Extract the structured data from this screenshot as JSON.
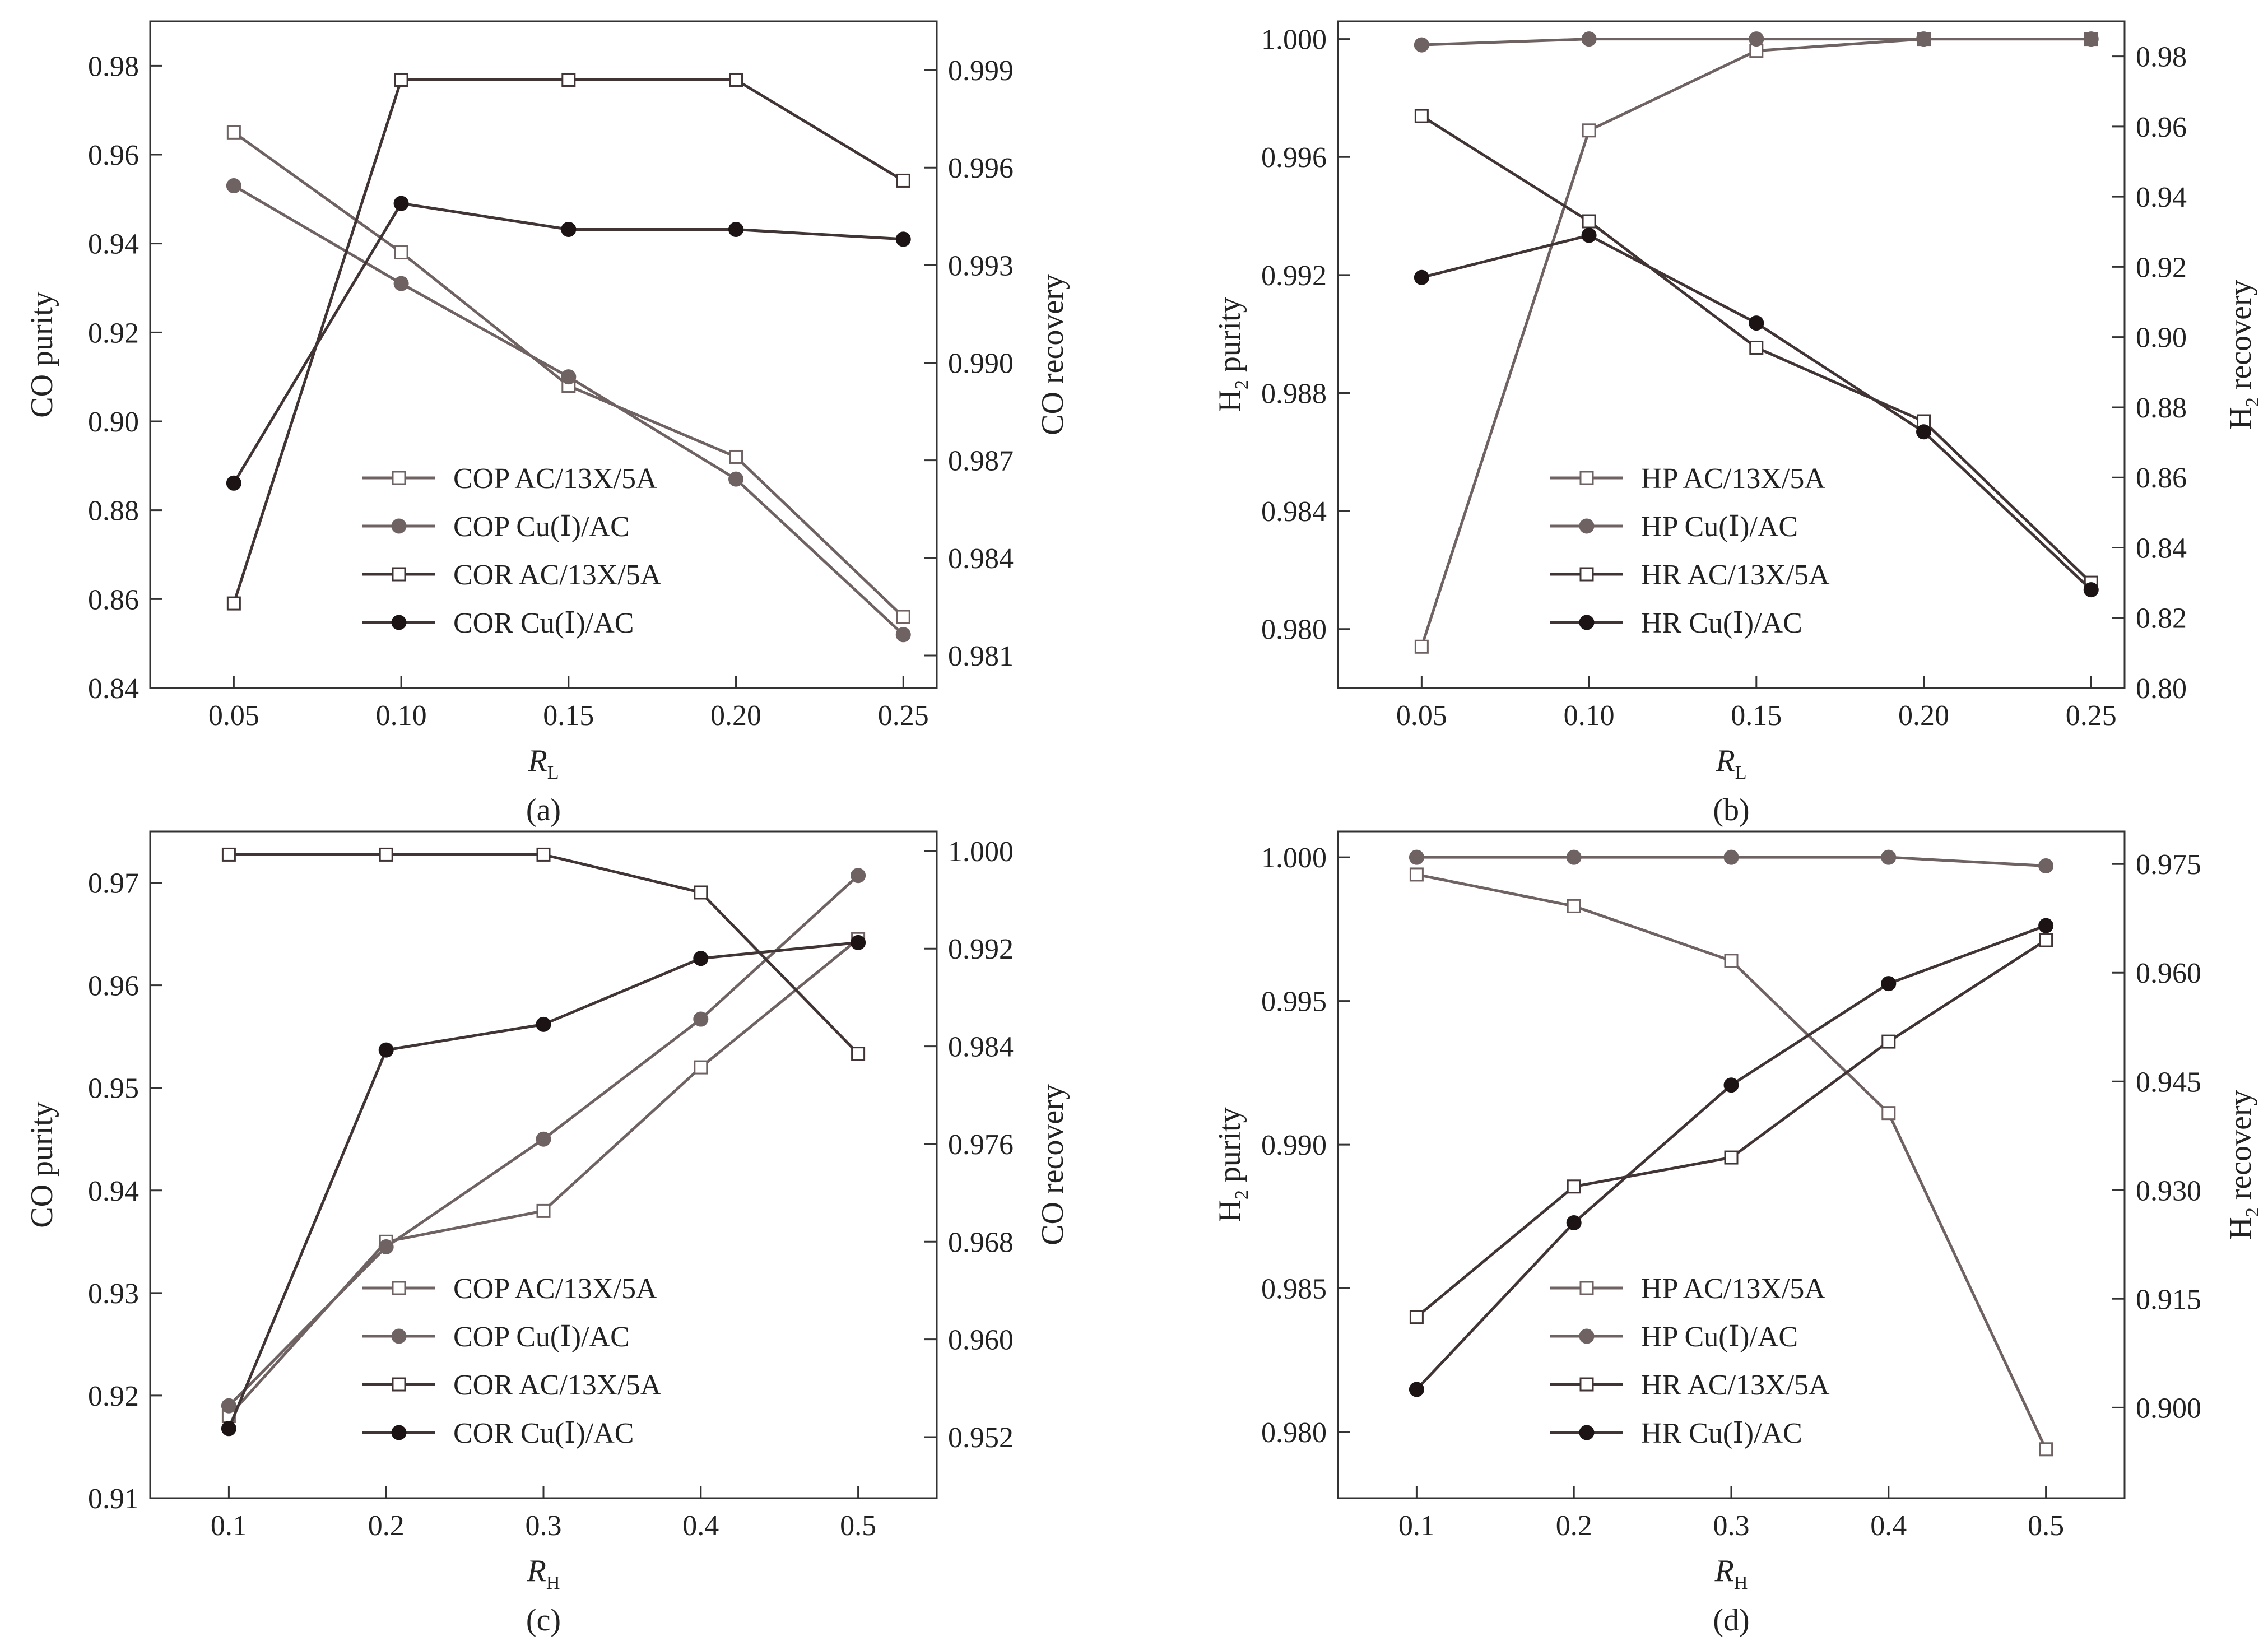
{
  "colors": {
    "cop_line": "#6e6262",
    "cop_filled": "#6e6262",
    "cor_line": "#403434",
    "cor_filled": "#1c1414",
    "hollow_marker_fill": "#ffffff",
    "axis": "#333333"
  },
  "chart_data": [
    {
      "type": "line",
      "panel": "(a)",
      "xlabel_main": "R",
      "xlabel_sub": "L",
      "ylabel_left_main": "CO purity",
      "ylabel_left_sub": "",
      "ylabel_left_tail": "",
      "ylabel_right_main": "CO recovery",
      "ylabel_right_sub": "",
      "ylabel_right_tail": "",
      "x": [
        0.05,
        0.1,
        0.15,
        0.2,
        0.25
      ],
      "xticks": [
        0.05,
        0.1,
        0.15,
        0.2,
        0.25
      ],
      "xtick_labels": [
        "0.05",
        "0.10",
        "0.15",
        "0.20",
        "0.25"
      ],
      "xlim": [
        0.025,
        0.26
      ],
      "ylim_left": [
        0.84,
        0.99
      ],
      "yticks_left": [
        "0.84",
        "0.86",
        "0.88",
        "0.90",
        "0.92",
        "0.94",
        "0.96",
        "0.98"
      ],
      "ylim_right": [
        0.98,
        1.0005
      ],
      "yticks_right": [
        "0.981",
        "0.984",
        "0.987",
        "0.990",
        "0.993",
        "0.996",
        "0.999"
      ],
      "legend_position": "lower-middle",
      "series": [
        {
          "name": "COP AC/13X/5A",
          "axis": "left",
          "marker": "hollow-square",
          "role": "cop",
          "values": [
            0.965,
            0.938,
            0.908,
            0.892,
            0.856
          ]
        },
        {
          "name": "COP Cu(Ⅰ)/AC",
          "axis": "left",
          "marker": "filled-circle",
          "role": "cop",
          "values": [
            0.953,
            0.931,
            0.91,
            0.887,
            0.852
          ]
        },
        {
          "name": "COR AC/13X/5A",
          "axis": "right",
          "marker": "hollow-square",
          "role": "cor",
          "values": [
            0.9826,
            0.9987,
            0.9987,
            0.9987,
            0.9956
          ]
        },
        {
          "name": "COR Cu(Ⅰ)/AC",
          "axis": "right",
          "marker": "filled-circle",
          "role": "cor",
          "values": [
            0.9863,
            0.9949,
            0.9941,
            0.9941,
            0.9938
          ]
        }
      ]
    },
    {
      "type": "line",
      "panel": "(b)",
      "xlabel_main": "R",
      "xlabel_sub": "L",
      "ylabel_left_main": "H",
      "ylabel_left_sub": "2",
      "ylabel_left_tail": " purity",
      "ylabel_right_main": "H",
      "ylabel_right_sub": "2",
      "ylabel_right_tail": " recovery",
      "x": [
        0.05,
        0.1,
        0.15,
        0.2,
        0.25
      ],
      "xticks": [
        0.05,
        0.1,
        0.15,
        0.2,
        0.25
      ],
      "xtick_labels": [
        "0.05",
        "0.10",
        "0.15",
        "0.20",
        "0.25"
      ],
      "xlim": [
        0.025,
        0.26
      ],
      "ylim_left": [
        0.978,
        1.0006
      ],
      "yticks_left": [
        "0.980",
        "0.984",
        "0.988",
        "0.992",
        "0.996",
        "1.000"
      ],
      "ylim_right": [
        0.8,
        0.99
      ],
      "yticks_right": [
        "0.80",
        "0.82",
        "0.84",
        "0.86",
        "0.88",
        "0.90",
        "0.92",
        "0.94",
        "0.96",
        "0.98"
      ],
      "legend_position": "lower-middle",
      "series": [
        {
          "name": "HP AC/13X/5A",
          "axis": "left",
          "marker": "hollow-square",
          "role": "cop",
          "values": [
            0.9794,
            0.9969,
            0.9996,
            1.0,
            1.0
          ]
        },
        {
          "name": "HP Cu(Ⅰ)/AC",
          "axis": "left",
          "marker": "filled-circle",
          "role": "cop",
          "values": [
            0.9998,
            1.0,
            1.0,
            1.0,
            1.0
          ]
        },
        {
          "name": "HR AC/13X/5A",
          "axis": "right",
          "marker": "hollow-square",
          "role": "cor",
          "values": [
            0.963,
            0.933,
            0.897,
            0.876,
            0.83
          ]
        },
        {
          "name": "HR Cu(Ⅰ)/AC",
          "axis": "right",
          "marker": "filled-circle",
          "role": "cor",
          "values": [
            0.917,
            0.929,
            0.904,
            0.873,
            0.828
          ]
        }
      ]
    },
    {
      "type": "line",
      "panel": "(c)",
      "xlabel_main": "R",
      "xlabel_sub": "H",
      "ylabel_left_main": "CO purity",
      "ylabel_left_sub": "",
      "ylabel_left_tail": "",
      "ylabel_right_main": "CO recovery",
      "ylabel_right_sub": "",
      "ylabel_right_tail": "",
      "x": [
        0.1,
        0.2,
        0.3,
        0.4,
        0.5
      ],
      "xticks": [
        0.1,
        0.2,
        0.3,
        0.4,
        0.5
      ],
      "xtick_labels": [
        "0.1",
        "0.2",
        "0.3",
        "0.4",
        "0.5"
      ],
      "xlim": [
        0.05,
        0.55
      ],
      "ylim_left": [
        0.91,
        0.975
      ],
      "yticks_left": [
        "0.91",
        "0.92",
        "0.93",
        "0.94",
        "0.95",
        "0.96",
        "0.97"
      ],
      "ylim_right": [
        0.947,
        1.0016
      ],
      "yticks_right": [
        "0.952",
        "0.960",
        "0.968",
        "0.976",
        "0.984",
        "0.992",
        "1.000"
      ],
      "legend_position": "lower-middle",
      "series": [
        {
          "name": "COP AC/13X/5A",
          "axis": "left",
          "marker": "hollow-square",
          "role": "cop",
          "values": [
            0.918,
            0.935,
            0.938,
            0.952,
            0.9645
          ]
        },
        {
          "name": "COP Cu(Ⅰ)/AC",
          "axis": "left",
          "marker": "filled-circle",
          "role": "cop",
          "values": [
            0.919,
            0.9345,
            0.945,
            0.9567,
            0.9707
          ]
        },
        {
          "name": "COR AC/13X/5A",
          "axis": "right",
          "marker": "hollow-square",
          "role": "cor",
          "values": [
            0.9997,
            0.9997,
            0.9997,
            0.9966,
            0.9834
          ]
        },
        {
          "name": "COR Cu(Ⅰ)/AC",
          "axis": "right",
          "marker": "filled-circle",
          "role": "cor",
          "values": [
            0.9527,
            0.9837,
            0.9858,
            0.9912,
            0.9925
          ]
        }
      ]
    },
    {
      "type": "line",
      "panel": "(d)",
      "xlabel_main": "R",
      "xlabel_sub": "H",
      "ylabel_left_main": "H",
      "ylabel_left_sub": "2",
      "ylabel_left_tail": " purity",
      "ylabel_right_main": "H",
      "ylabel_right_sub": "2",
      "ylabel_right_tail": " recovery",
      "x": [
        0.1,
        0.2,
        0.3,
        0.4,
        0.5
      ],
      "xticks": [
        0.1,
        0.2,
        0.3,
        0.4,
        0.5
      ],
      "xtick_labels": [
        "0.1",
        "0.2",
        "0.3",
        "0.4",
        "0.5"
      ],
      "xlim": [
        0.05,
        0.55
      ],
      "ylim_left": [
        0.9777,
        1.0009
      ],
      "yticks_left": [
        "0.980",
        "0.985",
        "0.990",
        "0.995",
        "1.000"
      ],
      "ylim_right": [
        0.8875,
        0.9795
      ],
      "yticks_right": [
        "0.900",
        "0.915",
        "0.930",
        "0.945",
        "0.960",
        "0.975"
      ],
      "legend_position": "lower-middle",
      "series": [
        {
          "name": "HP AC/13X/5A",
          "axis": "left",
          "marker": "hollow-square",
          "role": "cop",
          "values": [
            0.9994,
            0.9983,
            0.9964,
            0.9911,
            0.9794
          ]
        },
        {
          "name": "HP Cu(Ⅰ)/AC",
          "axis": "left",
          "marker": "filled-circle",
          "role": "cop",
          "values": [
            1.0,
            1.0,
            1.0,
            1.0,
            0.9997
          ]
        },
        {
          "name": "HR AC/13X/5A",
          "axis": "right",
          "marker": "hollow-square",
          "role": "cor",
          "values": [
            0.9125,
            0.9305,
            0.9345,
            0.9505,
            0.9645
          ]
        },
        {
          "name": "HR Cu(Ⅰ)/AC",
          "axis": "right",
          "marker": "filled-circle",
          "role": "cor",
          "values": [
            0.9025,
            0.9255,
            0.9445,
            0.9585,
            0.9665
          ]
        }
      ]
    }
  ]
}
